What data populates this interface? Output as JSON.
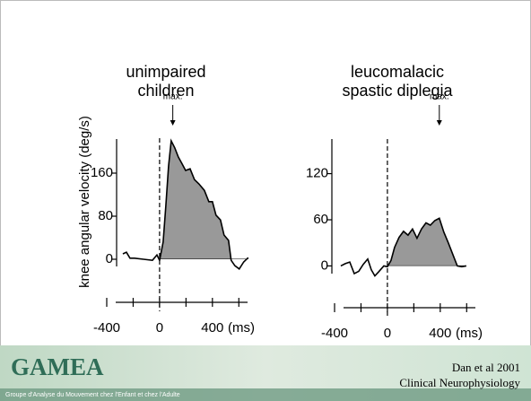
{
  "chart_data": [
    {
      "type": "line",
      "title": "unimpaired children",
      "ylabel": "knee angular velocity (deg/s)",
      "xlabel": "(ms)",
      "xlim": [
        -400,
        700
      ],
      "xticks": [
        -400,
        0,
        400
      ],
      "minor_xticks": [
        -200,
        200,
        600
      ],
      "ylim": [
        -15,
        225
      ],
      "yticks": [
        0,
        80,
        160
      ],
      "annotation": {
        "text": "max.",
        "x": 100
      },
      "series": [
        {
          "color": "#000000",
          "fill": "#999999",
          "x": [
            -278,
            -251,
            -224,
            -190,
            -122,
            -54,
            -20,
            0,
            27,
            47,
            68,
            88,
            115,
            142,
            169,
            197,
            231,
            264,
            298,
            339,
            373,
            400,
            427,
            461,
            488,
            522,
            542,
            570,
            603,
            637,
            671
          ],
          "values": [
            10,
            13,
            2,
            2,
            0,
            -2,
            8,
            -2,
            32,
            98,
            173,
            220,
            207,
            190,
            178,
            165,
            168,
            148,
            140,
            128,
            107,
            107,
            82,
            73,
            45,
            35,
            -2,
            -12,
            -18,
            -5,
            3
          ]
        }
      ]
    },
    {
      "type": "line",
      "title": "leucomalacic spastic diplegia",
      "xlabel": "(ms)",
      "xlim": [
        -400,
        700
      ],
      "xticks": [
        -400,
        0,
        400
      ],
      "minor_xticks": [
        -200,
        200,
        600
      ],
      "ylim": [
        -10,
        165
      ],
      "yticks": [
        0,
        60,
        120
      ],
      "annotation": {
        "text": "max.",
        "x": 393
      },
      "series": [
        {
          "color": "#000000",
          "fill": "#999999",
          "x": [
            -353,
            -319,
            -285,
            -251,
            -217,
            -183,
            -149,
            -122,
            -95,
            -68,
            -27,
            0,
            27,
            54,
            88,
            122,
            156,
            190,
            224,
            258,
            292,
            325,
            359,
            393,
            427,
            461,
            495,
            529,
            563,
            597
          ],
          "values": [
            0,
            3,
            5,
            -10,
            -7,
            2,
            9,
            -5,
            -13,
            -8,
            0,
            -1,
            7,
            24,
            37,
            45,
            40,
            48,
            36,
            48,
            56,
            53,
            59,
            62,
            44,
            30,
            15,
            0,
            -1,
            0
          ]
        }
      ]
    }
  ],
  "footer": {
    "logo": "GAMEA",
    "subtitle": "Groupe d'Analyse du Mouvement chez l'Enfant et chez l'Adulte",
    "citation": [
      "Dan et al 2001",
      "Clinical Neurophysiology"
    ]
  }
}
